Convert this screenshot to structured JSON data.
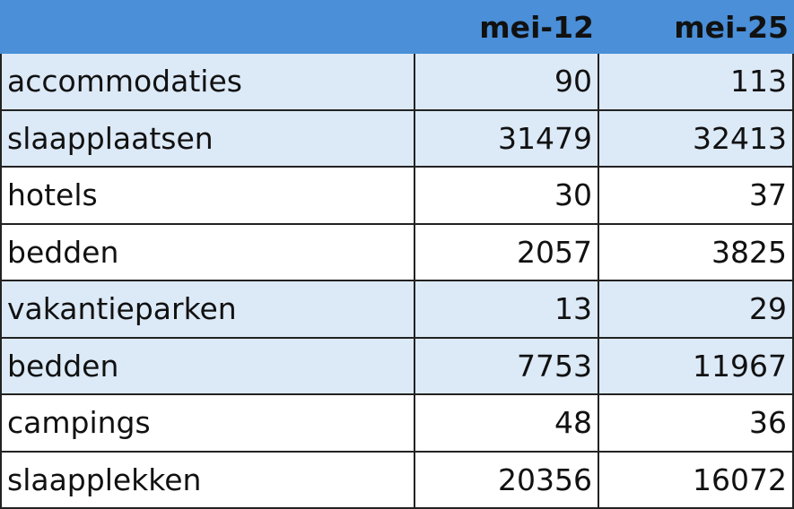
{
  "table": {
    "header": [
      "mei-12",
      "mei-25"
    ],
    "rows": [
      [
        "accommodaties",
        90,
        113
      ],
      [
        "slaapplaatsen",
        31479,
        32413
      ],
      [
        "hotels",
        30,
        37
      ],
      [
        "bedden",
        2057,
        3825
      ],
      [
        "vakantieparken",
        13,
        29
      ],
      [
        "bedden",
        7753,
        11967
      ],
      [
        "campings",
        48,
        36
      ],
      [
        "slaapplekken",
        20356,
        16072
      ]
    ]
  }
}
